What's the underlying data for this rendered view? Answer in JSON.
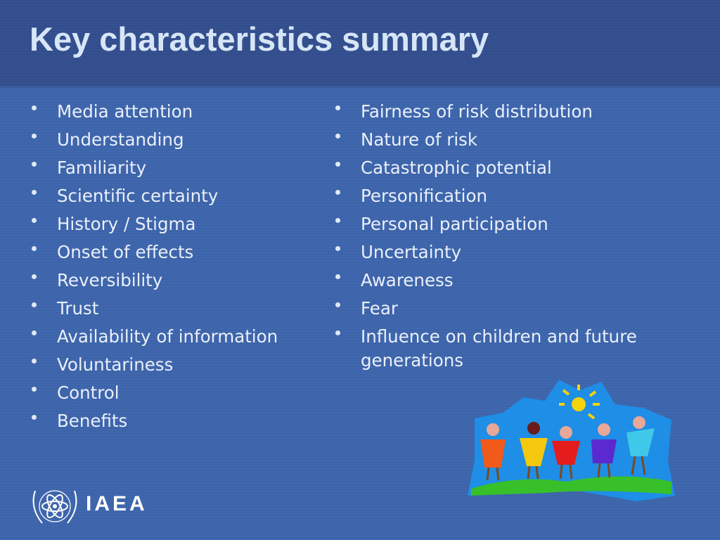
{
  "header": {
    "title": "Key characteristics summary"
  },
  "left_list": [
    "Media attention",
    "Understanding",
    "Familiarity",
    "Scientific certainty",
    "History / Stigma",
    "Onset of effects",
    "Reversibility",
    "Trust",
    "Availability of information",
    "Voluntariness",
    "Control",
    "Benefits"
  ],
  "right_list": [
    "Fairness of risk distribution",
    "Nature of risk",
    "Catastrophic potential",
    "Personification",
    "Personal participation",
    "Uncertainty",
    "Awareness",
    "Fear",
    "Influence on children and future generations"
  ],
  "footer": {
    "logo_text": "IAEA"
  }
}
